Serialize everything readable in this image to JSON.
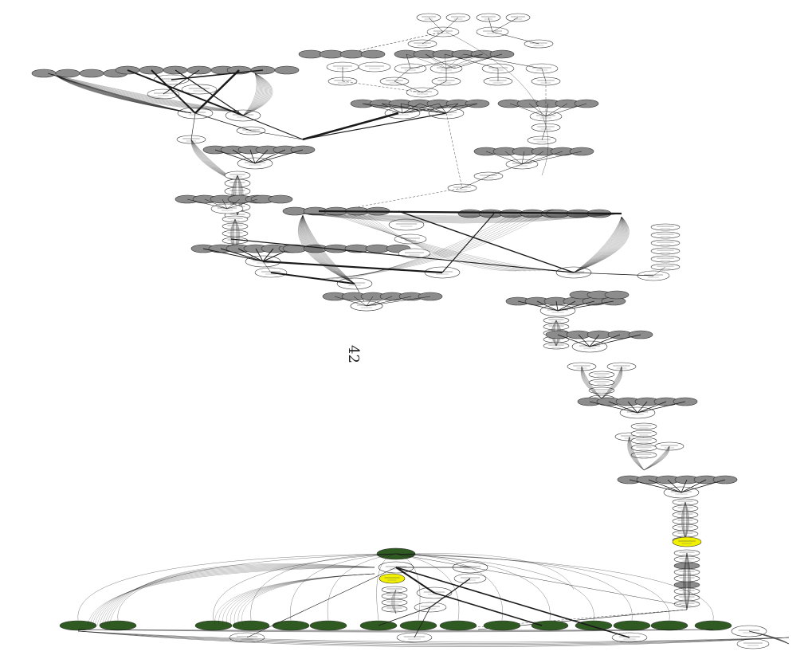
{
  "page": {
    "page_number": "42"
  },
  "graph": {
    "node_fill": {
      "plain": "#ffffff",
      "gray": "#8c8c8c",
      "green": "#2f5a22",
      "yellow": "#f0f000"
    },
    "edge_color": "#1a1a1a",
    "clusters": [
      {
        "id": "top-chain",
        "node_count": 46
      },
      {
        "id": "upper-left-blob",
        "node_count": 22
      },
      {
        "id": "middle-blob",
        "node_count": 40
      },
      {
        "id": "vertical-spine",
        "node_count": 64
      },
      {
        "id": "bottom-green-row",
        "node_count": 16
      }
    ]
  }
}
